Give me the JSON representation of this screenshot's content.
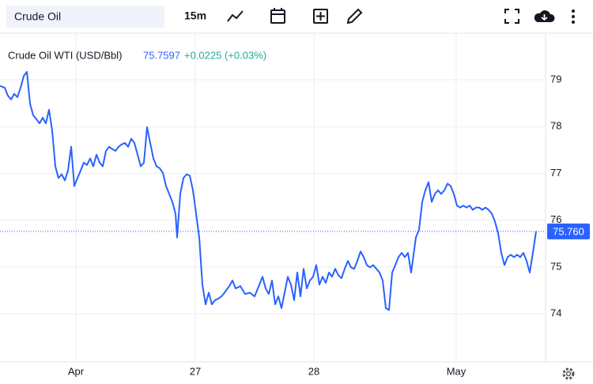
{
  "toolbar": {
    "search": "Crude Oil",
    "interval": "15m"
  },
  "chart_data": {
    "type": "line",
    "title": "Crude Oil WTI (USD/Bbl)",
    "price": "75.7597",
    "change": "+0.0225 (+0.03%)",
    "last_price": {
      "value": 75.76,
      "label": "75.760"
    },
    "x": [
      0,
      6,
      10,
      14,
      18,
      22,
      26,
      30,
      34,
      38,
      42,
      46,
      50,
      54,
      58,
      62,
      66,
      70,
      74,
      78,
      82,
      86,
      90,
      94,
      98,
      102,
      106,
      110,
      114,
      118,
      122,
      126,
      130,
      134,
      138,
      142,
      146,
      150,
      154,
      158,
      162,
      166,
      170,
      174,
      178,
      182,
      186,
      190,
      194,
      198,
      202,
      206,
      210,
      214,
      218,
      222,
      224,
      228,
      232,
      236,
      240,
      244,
      248,
      252,
      256,
      260,
      264,
      268,
      272,
      276,
      280,
      284,
      290,
      294,
      298,
      304,
      310,
      316,
      322,
      328,
      332,
      336,
      340,
      344,
      348,
      352,
      356,
      360,
      364,
      368,
      372,
      376,
      380,
      384,
      388,
      392,
      396,
      400,
      404,
      408,
      412,
      416,
      420,
      424,
      428,
      432,
      436,
      440,
      444,
      448,
      452,
      456,
      460,
      464,
      468,
      472,
      476,
      480,
      484,
      488,
      492,
      496,
      500,
      504,
      508,
      512,
      516,
      520,
      522,
      526,
      530,
      534,
      538,
      542,
      546,
      550,
      554,
      558,
      562,
      566,
      570,
      574,
      578,
      582,
      586,
      590,
      594,
      598,
      602,
      606,
      610,
      614,
      618,
      622,
      626,
      630,
      634,
      638,
      642,
      646,
      650,
      654,
      658,
      662,
      666,
      670,
      674,
      678
    ],
    "series": [
      {
        "name": "Crude Oil WTI",
        "color": "#2962ff",
        "values": [
          78.87,
          78.83,
          78.66,
          78.58,
          78.7,
          78.63,
          78.83,
          79.08,
          79.17,
          78.49,
          78.24,
          78.16,
          78.07,
          78.19,
          78.07,
          78.36,
          77.91,
          77.15,
          76.9,
          76.98,
          76.85,
          77.06,
          77.57,
          76.73,
          76.9,
          77.06,
          77.23,
          77.18,
          77.32,
          77.15,
          77.4,
          77.23,
          77.15,
          77.48,
          77.57,
          77.52,
          77.48,
          77.57,
          77.62,
          77.65,
          77.57,
          77.74,
          77.65,
          77.4,
          77.15,
          77.23,
          77.99,
          77.65,
          77.32,
          77.15,
          77.11,
          77.01,
          76.73,
          76.56,
          76.39,
          76.14,
          75.63,
          76.56,
          76.9,
          76.98,
          76.95,
          76.64,
          76.14,
          75.63,
          74.62,
          74.2,
          74.45,
          74.2,
          74.29,
          74.32,
          74.37,
          74.45,
          74.59,
          74.71,
          74.54,
          74.59,
          74.42,
          74.45,
          74.37,
          74.62,
          74.79,
          74.54,
          74.42,
          74.71,
          74.2,
          74.37,
          74.12,
          74.45,
          74.79,
          74.62,
          74.29,
          74.88,
          74.37,
          74.96,
          74.54,
          74.71,
          74.79,
          75.04,
          74.62,
          74.79,
          74.66,
          74.88,
          74.79,
          74.96,
          74.82,
          74.76,
          74.96,
          75.13,
          74.99,
          74.96,
          75.13,
          75.33,
          75.21,
          75.04,
          74.99,
          75.04,
          74.96,
          74.88,
          74.71,
          74.12,
          74.08,
          74.88,
          75.04,
          75.21,
          75.3,
          75.21,
          75.3,
          74.88,
          75.13,
          75.63,
          75.8,
          76.39,
          76.64,
          76.81,
          76.39,
          76.56,
          76.64,
          76.56,
          76.64,
          76.78,
          76.73,
          76.56,
          76.31,
          76.27,
          76.31,
          76.27,
          76.31,
          76.22,
          76.27,
          76.27,
          76.22,
          76.27,
          76.22,
          76.14,
          75.97,
          75.72,
          75.3,
          75.04,
          75.21,
          75.26,
          75.21,
          75.26,
          75.21,
          75.3,
          75.13,
          74.88,
          75.3,
          75.76
        ]
      }
    ],
    "xlim": [
      0,
      690
    ],
    "xticks": [
      {
        "value": 96,
        "label": "Apr"
      },
      {
        "value": 247,
        "label": "27"
      },
      {
        "value": 397,
        "label": "28"
      },
      {
        "value": 577,
        "label": "May"
      }
    ],
    "ylim": [
      72.97,
      79.98
    ],
    "yticks": [
      74,
      75,
      76,
      77,
      78,
      79
    ],
    "grid": true
  }
}
